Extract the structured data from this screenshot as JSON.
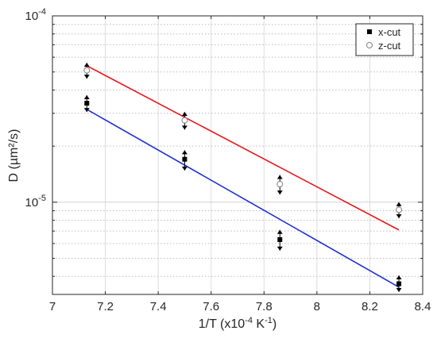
{
  "chart_data": {
    "type": "scatter",
    "title": "",
    "xlabel": "1/T (x10",
    "xlabel_exp": "-4",
    "xlabel_unit": " K",
    "xlabel_unit_exp": "-1",
    "xlabel_close": ")",
    "ylabel": "D (µm²/s)",
    "xlim": [
      7,
      8.4
    ],
    "ylim": [
      3.2e-06,
      0.0001
    ],
    "yscale": "log",
    "grid": true,
    "legend_position": "top-right",
    "x_ticks": [
      7,
      7.2,
      7.4,
      7.6,
      7.8,
      8,
      8.2,
      8.4
    ],
    "x_tick_labels": [
      "7",
      "7.2",
      "7.4",
      "7.6",
      "7.8",
      "8",
      "8.2",
      "8.4"
    ],
    "y_ticks": [
      {
        "base": "10",
        "exp": "-5",
        "value": 1e-05
      },
      {
        "base": "10",
        "exp": "-4",
        "value": 0.0001
      }
    ],
    "series": [
      {
        "name": "x-cut",
        "marker": "filled-square",
        "color": "#000000",
        "points": [
          {
            "x": 7.13,
            "y": 3.4e-05,
            "err_low": 3.05e-05,
            "err_high": 3.75e-05
          },
          {
            "x": 7.5,
            "y": 1.7e-05,
            "err_low": 1.48e-05,
            "err_high": 1.9e-05
          },
          {
            "x": 7.86,
            "y": 6.3e-06,
            "err_low": 5.5e-06,
            "err_high": 7.1e-06
          },
          {
            "x": 8.31,
            "y": 3.65e-06,
            "err_low": 3.3e-06,
            "err_high": 4.05e-06
          }
        ]
      },
      {
        "name": "z-cut",
        "marker": "open-circle",
        "color": "#7f7f7f",
        "points": [
          {
            "x": 7.13,
            "y": 5.1e-05,
            "err_low": 4.6e-05,
            "err_high": 5.6e-05
          },
          {
            "x": 7.5,
            "y": 2.75e-05,
            "err_low": 2.45e-05,
            "err_high": 3.05e-05
          },
          {
            "x": 7.86,
            "y": 1.25e-05,
            "err_low": 1.1e-05,
            "err_high": 1.4e-05
          },
          {
            "x": 8.31,
            "y": 9.1e-06,
            "err_low": 8.2e-06,
            "err_high": 1e-05
          }
        ]
      }
    ],
    "fit_lines": [
      {
        "color": "#e8161b",
        "x": [
          7.13,
          8.31
        ],
        "y": [
          5.4e-05,
          7.1e-06
        ]
      },
      {
        "color": "#1f2fd0",
        "x": [
          7.13,
          8.31
        ],
        "y": [
          3.15e-05,
          3.5e-06
        ]
      }
    ]
  }
}
